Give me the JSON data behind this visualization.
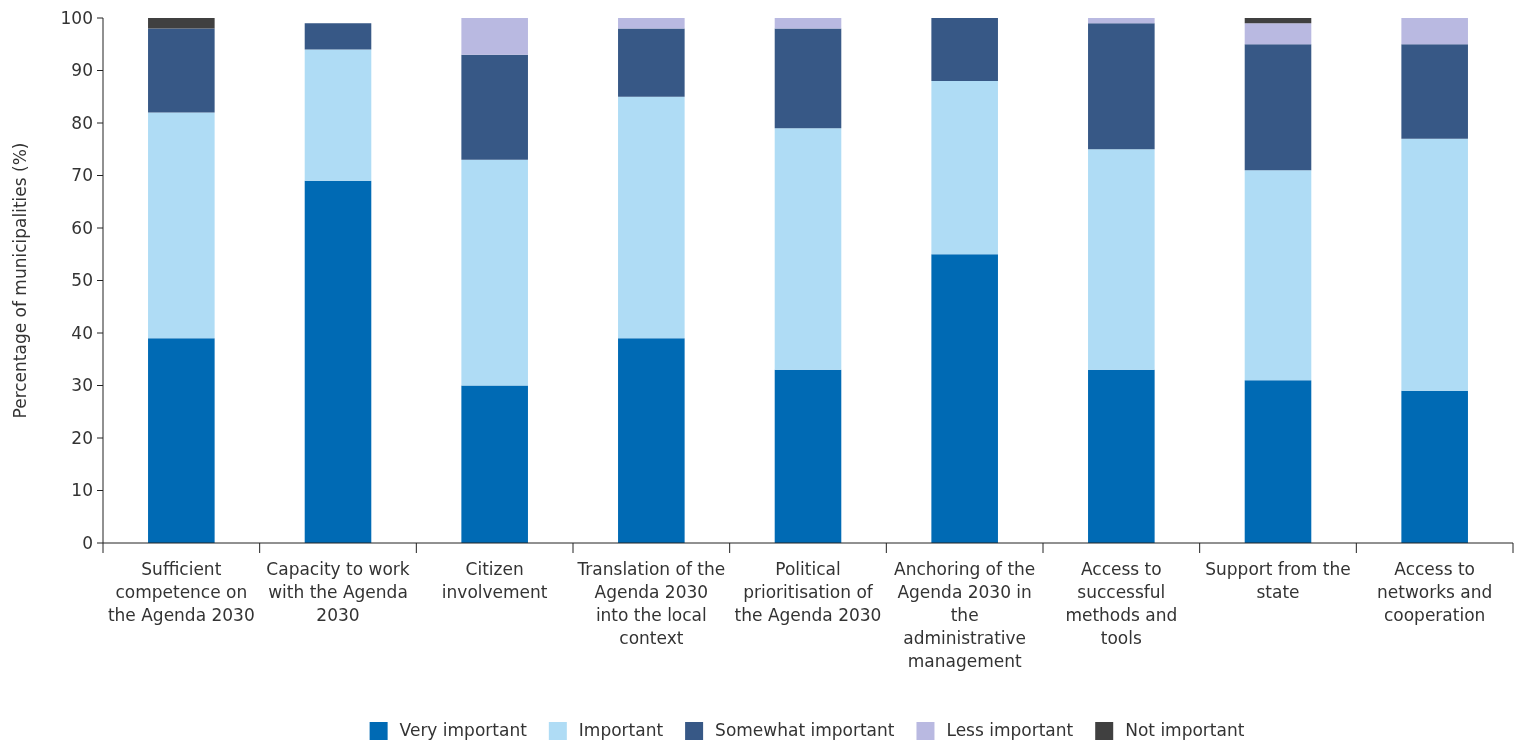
{
  "chart_data": {
    "type": "bar",
    "stacked": true,
    "ylabel": "Percentage of municipalities (%)",
    "categories": [
      "Sufficient competence on the Agenda 2030",
      "Capacity to work with the Agenda 2030",
      "Citizen involvement",
      "Translation of the Agenda 2030 into the local context",
      "Political prioritisation of the Agenda 2030",
      "Anchoring of the Agenda 2030 in the administrative management",
      "Access to successful methods and tools",
      "Support from the state",
      "Access to networks and cooperation"
    ],
    "series": [
      {
        "name": "Very important",
        "color": "#006ab4",
        "values": [
          39,
          69,
          30,
          39,
          33,
          55,
          33,
          31,
          29
        ]
      },
      {
        "name": "Important",
        "color": "#afdcf5",
        "values": [
          43,
          25,
          43,
          46,
          46,
          33,
          42,
          40,
          48
        ]
      },
      {
        "name": "Somewhat important",
        "color": "#375886",
        "values": [
          16,
          5,
          20,
          13,
          19,
          12,
          24,
          24,
          18
        ]
      },
      {
        "name": "Less important",
        "color": "#b9b9e1",
        "values": [
          0,
          0,
          7,
          2,
          2,
          0,
          1,
          4,
          5
        ]
      },
      {
        "name": "Not important",
        "color": "#404040",
        "values": [
          2,
          0,
          0,
          0,
          0,
          0,
          0,
          1,
          0
        ]
      }
    ],
    "ylim": [
      0,
      100
    ],
    "yticks": [
      0,
      10,
      20,
      30,
      40,
      50,
      60,
      70,
      80,
      90,
      100
    ],
    "grid": false,
    "legend": "bottom"
  }
}
